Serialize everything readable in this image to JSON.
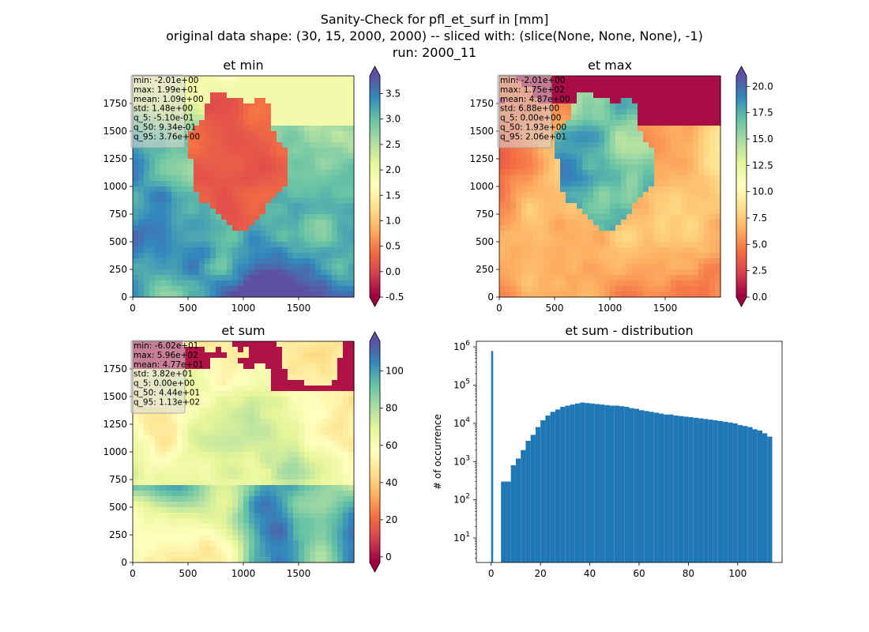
{
  "suptitle": {
    "line1": "Sanity-Check for pfl_et_surf in [mm]",
    "line2": "original data shape: (30, 15, 2000, 2000) -- sliced with: (slice(None, None, None), -1)",
    "line3": "run: 2000_11"
  },
  "panels": [
    {
      "title": "et min",
      "stats": [
        "min: -2.01e+00",
        "max: 1.99e+01",
        "mean: 1.09e+00",
        "std: 1.48e+00",
        "q_5: -5.10e-01",
        "q_50: 9.34e-01",
        "q_95: 3.76e+00"
      ],
      "colorbar": {
        "min": -0.5,
        "max": 3.85,
        "ticks": [
          "3.5",
          "3.0",
          "2.5",
          "2.0",
          "1.5",
          "1.0",
          "0.5",
          "0.0",
          "-0.5"
        ],
        "tick_values": [
          3.5,
          3.0,
          2.5,
          2.0,
          1.5,
          1.0,
          0.5,
          0.0,
          -0.5
        ]
      }
    },
    {
      "title": "et max",
      "stats": [
        "min: -2.01e+00",
        "max: 1.75e+02",
        "mean: 4.87e+00",
        "std: 6.88e+00",
        "q_5: 0.00e+00",
        "q_50: 1.93e+00",
        "q_95: 2.06e+01"
      ],
      "colorbar": {
        "min": 0.0,
        "max": 21.0,
        "ticks": [
          "20.0",
          "17.5",
          "15.0",
          "12.5",
          "10.0",
          "7.5",
          "5.0",
          "2.5",
          "0.0"
        ],
        "tick_values": [
          20.0,
          17.5,
          15.0,
          12.5,
          10.0,
          7.5,
          5.0,
          2.5,
          0.0
        ]
      }
    },
    {
      "title": "et sum",
      "stats": [
        "min: -6.02e+01",
        "max: 5.96e+02",
        "mean: 4.77e+01",
        "std: 3.82e+01",
        "q_5: 0.00e+00",
        "q_50: 4.44e+01",
        "q_95: 1.13e+02"
      ],
      "colorbar": {
        "min": -3.0,
        "max": 116.0,
        "ticks": [
          "100",
          "80",
          "60",
          "40",
          "20",
          "0"
        ],
        "tick_values": [
          100,
          80,
          60,
          40,
          20,
          0
        ]
      }
    }
  ],
  "map_axes": {
    "x_ticks": [
      "0",
      "500",
      "1000",
      "1500"
    ],
    "x_tick_values": [
      0,
      500,
      1000,
      1500
    ],
    "y_ticks": [
      "1750",
      "1500",
      "1250",
      "1000",
      "750",
      "500",
      "250",
      "0"
    ],
    "y_tick_values": [
      1750,
      1500,
      1250,
      1000,
      750,
      500,
      250,
      0
    ]
  },
  "hist": {
    "title": "et sum - distribution",
    "ylabel": "# of occurrence",
    "x_ticks": [
      "0",
      "20",
      "40",
      "60",
      "80",
      "100"
    ],
    "x_tick_values": [
      0,
      20,
      40,
      60,
      80,
      100
    ],
    "y_tick_base": "10",
    "y_tick_exps": [
      "1",
      "2",
      "3",
      "4",
      "5",
      "6"
    ],
    "y_tick_values": [
      1,
      2,
      3,
      4,
      5,
      6
    ]
  },
  "chart_data": [
    {
      "type": "heatmap",
      "title": "et min",
      "xlim": [
        0,
        2000
      ],
      "ylim": [
        0,
        2000
      ],
      "colorbar_range": [
        -0.5,
        3.85
      ],
      "colormap": "Spectral"
    },
    {
      "type": "heatmap",
      "title": "et max",
      "xlim": [
        0,
        2000
      ],
      "ylim": [
        0,
        2000
      ],
      "colorbar_range": [
        0.0,
        21.0
      ],
      "colormap": "Spectral"
    },
    {
      "type": "heatmap",
      "title": "et sum",
      "xlim": [
        0,
        2000
      ],
      "ylim": [
        0,
        2000
      ],
      "colorbar_range": [
        -3.0,
        116.0
      ],
      "colormap": "Spectral"
    },
    {
      "type": "bar",
      "title": "et sum - distribution",
      "ylabel": "# of occurrence",
      "xlim": [
        -6,
        118
      ],
      "ylim": [
        2.3,
        1400000
      ],
      "yscale": "log",
      "bar_color": "#1f77b4",
      "x": [
        0,
        4,
        8,
        10,
        12,
        14,
        16,
        18,
        20,
        22,
        24,
        26,
        28,
        30,
        32,
        34,
        36,
        38,
        40,
        42,
        44,
        46,
        48,
        50,
        52,
        54,
        56,
        58,
        60,
        62,
        64,
        66,
        68,
        70,
        72,
        74,
        76,
        78,
        80,
        82,
        84,
        86,
        88,
        90,
        92,
        94,
        96,
        98,
        100,
        102,
        104,
        106,
        108,
        110,
        112
      ],
      "values": [
        780000,
        300,
        800,
        1200,
        2000,
        3500,
        5000,
        8000,
        12000,
        16000,
        20000,
        23000,
        27000,
        29000,
        31000,
        33000,
        35000,
        34000,
        33000,
        32000,
        31000,
        30000,
        29000,
        29000,
        28000,
        27000,
        25000,
        24000,
        22000,
        21000,
        20000,
        19000,
        18000,
        17000,
        17000,
        16000,
        15500,
        15000,
        14500,
        14000,
        13500,
        13000,
        12500,
        12000,
        11500,
        11000,
        10500,
        10000,
        9000,
        8500,
        8000,
        7000,
        6500,
        5500,
        4500
      ]
    }
  ]
}
